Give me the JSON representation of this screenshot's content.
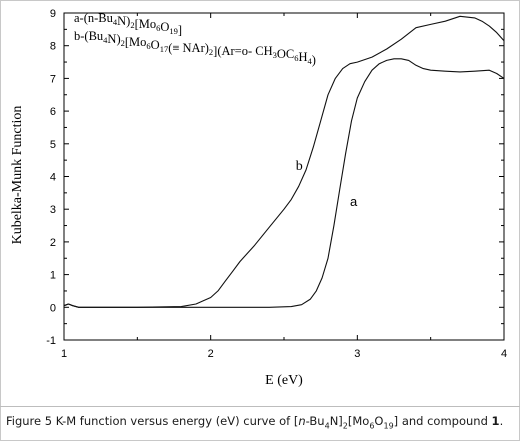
{
  "caption": {
    "prefix": "Figure 5 K-M function versus energy (eV) curve of [",
    "italic_n": "n",
    "mid1": "-Bu",
    "sub1": "4",
    "mid2": "N]",
    "sub2": "2",
    "mid3": "[Mo",
    "sub3": "6",
    "mid4": "O",
    "sub4": "19",
    "mid5": "] and compound ",
    "bold_num": "1",
    "suffix": "."
  },
  "chart_data": {
    "type": "line",
    "xlabel": "E (eV)",
    "ylabel": "Kubelka-Munk Function",
    "xlim": [
      1,
      4
    ],
    "ylim": [
      -1,
      9
    ],
    "x_ticks": [
      1,
      2,
      3,
      4
    ],
    "y_ticks": [
      -1,
      0,
      1,
      2,
      3,
      4,
      5,
      6,
      7,
      8,
      9
    ],
    "grid": false,
    "legend_lines": [
      {
        "name": "a",
        "parts": [
          [
            "a-(n-Bu",
            ""
          ],
          [
            "4",
            "sub"
          ],
          [
            "N)",
            ""
          ],
          [
            "2",
            "sub"
          ],
          [
            "[Mo",
            ""
          ],
          [
            "6",
            "sub"
          ],
          [
            "O",
            ""
          ],
          [
            "19",
            "sub"
          ],
          [
            "]",
            ""
          ]
        ]
      },
      {
        "name": "b",
        "parts": [
          [
            "b-(Bu",
            ""
          ],
          [
            "4",
            "sub"
          ],
          [
            "N)",
            ""
          ],
          [
            "2",
            "sub"
          ],
          [
            "[Mo",
            ""
          ],
          [
            "6",
            "sub"
          ],
          [
            "O",
            ""
          ],
          [
            "17",
            "sub"
          ],
          [
            "(≡  NAr)",
            ""
          ],
          [
            "2",
            "sub"
          ],
          [
            "](Ar=o- CH",
            ""
          ],
          [
            "3",
            "sub"
          ],
          [
            "OC",
            ""
          ],
          [
            "6",
            "sub"
          ],
          [
            "H",
            ""
          ],
          [
            "4",
            "sub"
          ],
          [
            ")",
            ""
          ]
        ]
      }
    ],
    "series": [
      {
        "name": "a",
        "label_at": [
          2.95,
          3.1
        ],
        "x": [
          1.0,
          1.03,
          1.06,
          1.1,
          1.5,
          2.0,
          2.4,
          2.55,
          2.62,
          2.68,
          2.72,
          2.76,
          2.8,
          2.84,
          2.88,
          2.92,
          2.96,
          3.0,
          3.05,
          3.1,
          3.15,
          3.2,
          3.25,
          3.3,
          3.35,
          3.4,
          3.45,
          3.5,
          3.6,
          3.7,
          3.8,
          3.9,
          3.95,
          4.0
        ],
        "y": [
          0.05,
          0.1,
          0.05,
          0.0,
          0.0,
          0.0,
          0.0,
          0.02,
          0.08,
          0.25,
          0.5,
          0.9,
          1.5,
          2.5,
          3.6,
          4.7,
          5.7,
          6.4,
          6.9,
          7.25,
          7.45,
          7.55,
          7.6,
          7.6,
          7.55,
          7.4,
          7.3,
          7.25,
          7.22,
          7.2,
          7.22,
          7.25,
          7.15,
          7.0
        ]
      },
      {
        "name": "b",
        "label_at": [
          2.58,
          4.2
        ],
        "x": [
          1.0,
          1.03,
          1.06,
          1.1,
          1.5,
          1.8,
          1.9,
          1.95,
          2.0,
          2.05,
          2.1,
          2.15,
          2.2,
          2.3,
          2.4,
          2.5,
          2.55,
          2.6,
          2.65,
          2.7,
          2.75,
          2.8,
          2.85,
          2.9,
          2.95,
          3.0,
          3.1,
          3.2,
          3.3,
          3.4,
          3.5,
          3.6,
          3.7,
          3.8,
          3.85,
          3.9,
          3.95,
          4.0
        ],
        "y": [
          0.05,
          0.1,
          0.05,
          0.0,
          0.0,
          0.02,
          0.1,
          0.2,
          0.3,
          0.5,
          0.8,
          1.1,
          1.4,
          1.9,
          2.45,
          3.0,
          3.3,
          3.7,
          4.2,
          4.9,
          5.7,
          6.5,
          7.0,
          7.3,
          7.45,
          7.5,
          7.65,
          7.9,
          8.2,
          8.55,
          8.65,
          8.75,
          8.9,
          8.85,
          8.75,
          8.6,
          8.4,
          8.15
        ]
      }
    ]
  }
}
